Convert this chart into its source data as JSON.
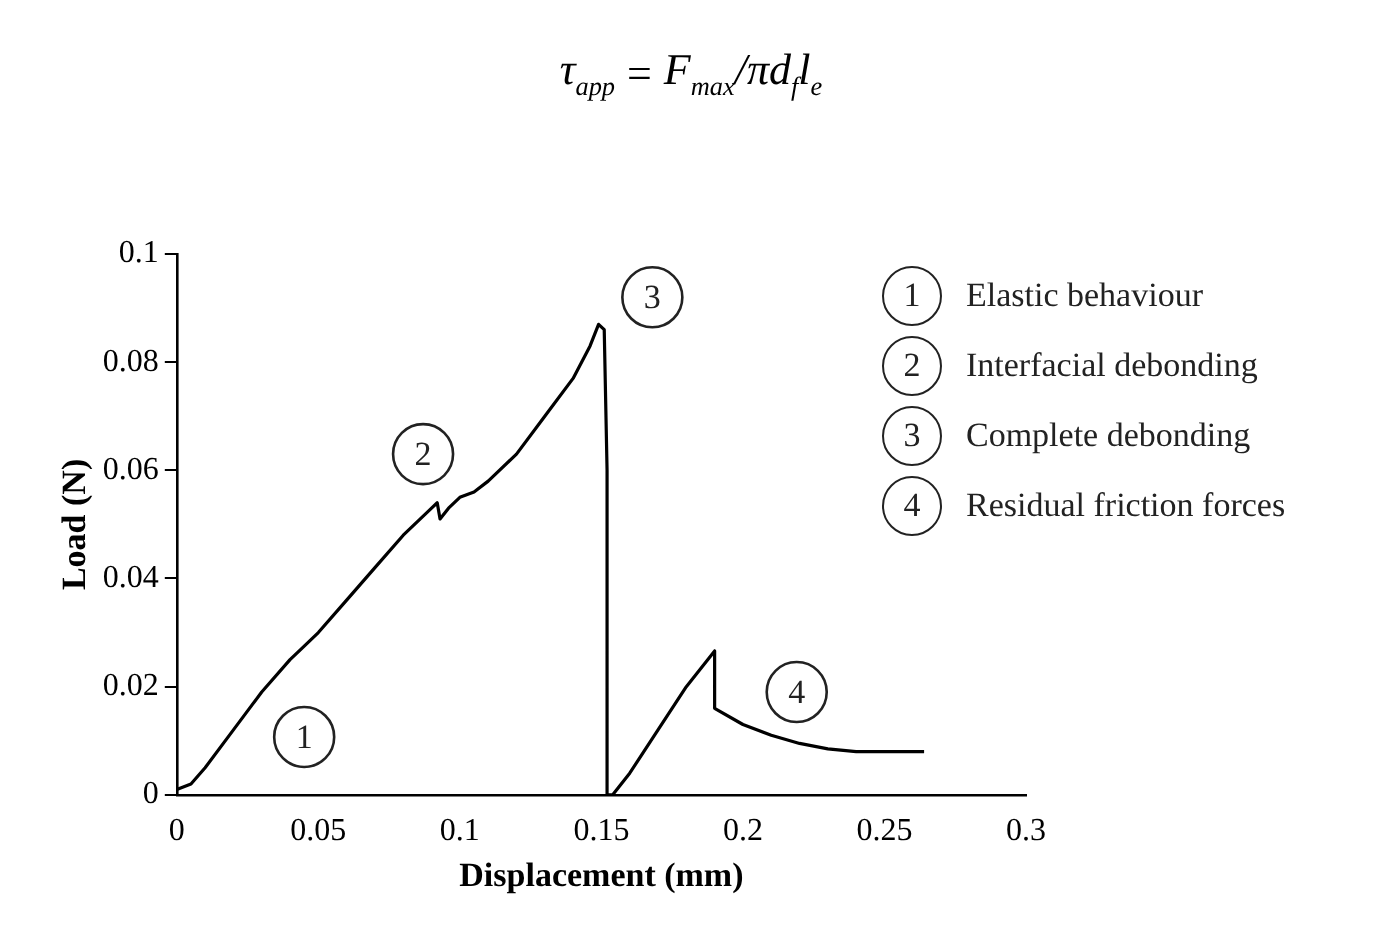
{
  "chart_data": {
    "type": "line",
    "title": "τ$_{app}$ = F$_{max}$/πd$_{f}$l$_{e}$",
    "xlabel": "Displacement (mm)",
    "ylabel": "Load (N)",
    "x": [
      0,
      0.005,
      0.01,
      0.02,
      0.03,
      0.04,
      0.044,
      0.05,
      0.06,
      0.07,
      0.08,
      0.09,
      0.092,
      0.093,
      0.096,
      0.1,
      0.105,
      0.11,
      0.12,
      0.13,
      0.14,
      0.146,
      0.149,
      0.151,
      0.152,
      0.152,
      0.154,
      0.16,
      0.17,
      0.18,
      0.19,
      0.19,
      0.2,
      0.21,
      0.22,
      0.23,
      0.24,
      0.25,
      0.264
    ],
    "series": [
      {
        "color": "#000000",
        "values": [
          0.001,
          0.002,
          0.005,
          0.012,
          0.019,
          0.025,
          0.027,
          0.03,
          0.036,
          0.042,
          0.048,
          0.053,
          0.054,
          0.051,
          0.053,
          0.055,
          0.056,
          0.058,
          0.063,
          0.07,
          0.077,
          0.083,
          0.087,
          0.086,
          0.06,
          0,
          0,
          0.004,
          0.012,
          0.02,
          0.0266,
          0.016,
          0.013,
          0.011,
          0.0095,
          0.0085,
          0.008,
          0.008,
          0.008
        ]
      }
    ],
    "xlim": [
      0,
      0.3
    ],
    "xticks": [
      0,
      0.05,
      0.1,
      0.15,
      0.2,
      0.25,
      0.3
    ],
    "ylim": [
      0,
      0.1
    ],
    "yticks": [
      0,
      0.02,
      0.04,
      0.06,
      0.08,
      0.1
    ],
    "grid": false,
    "legend": false,
    "marker": "none",
    "line_style": "solid",
    "annotations": [
      {
        "text": "1",
        "x": 0.045,
        "y": 0.0107
      },
      {
        "text": "2",
        "x": 0.087,
        "y": 0.063
      },
      {
        "text": "3",
        "x": 0.168,
        "y": 0.092
      },
      {
        "text": "4",
        "x": 0.219,
        "y": 0.019
      },
      "1 Elastic behaviour",
      "2 Interfacial debonding",
      "3 Complete debonding",
      "4 Residual friction forces"
    ]
  }
}
